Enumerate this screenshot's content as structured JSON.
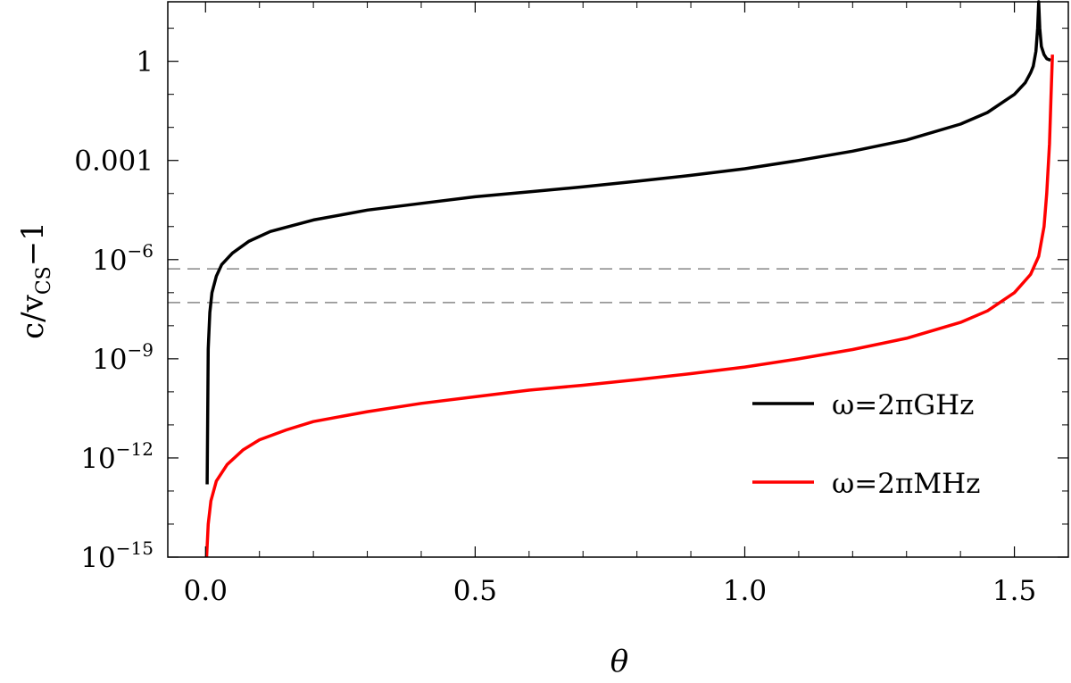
{
  "chart_data": {
    "type": "line",
    "xlabel": "θ",
    "ylabel": {
      "main": "c/v",
      "sub": "CS",
      "tail": "−1"
    },
    "xlim": [
      -0.07,
      1.6
    ],
    "ylim_log10": [
      -15,
      1.8
    ],
    "yscale": "log",
    "grid": false,
    "legend_position": "center-right",
    "x_ticks": [
      {
        "value": 0.0,
        "label": "0.0"
      },
      {
        "value": 0.5,
        "label": "0.5"
      },
      {
        "value": 1.0,
        "label": "1.0"
      },
      {
        "value": 1.5,
        "label": "1.5"
      }
    ],
    "x_minor_ticks": [
      0.1,
      0.2,
      0.3,
      0.4,
      0.6,
      0.7,
      0.8,
      0.9,
      1.1,
      1.2,
      1.3,
      1.4
    ],
    "y_ticks": [
      {
        "exp": 0,
        "base": "1",
        "sup": ""
      },
      {
        "exp": -3,
        "base": "0.001",
        "sup": ""
      },
      {
        "exp": -6,
        "base": "10",
        "sup": "−6"
      },
      {
        "exp": -9,
        "base": "10",
        "sup": "−9"
      },
      {
        "exp": -12,
        "base": "10",
        "sup": "−12"
      },
      {
        "exp": -15,
        "base": "10",
        "sup": "−15"
      }
    ],
    "reference_lines_log10": [
      -6.28,
      -7.3
    ],
    "series": [
      {
        "name": "ω=2πGHz",
        "color": "#000000",
        "points": [
          [
            0.003,
            -12.8
          ],
          [
            0.005,
            -8.7
          ],
          [
            0.008,
            -7.6
          ],
          [
            0.012,
            -7.0
          ],
          [
            0.02,
            -6.5
          ],
          [
            0.03,
            -6.15
          ],
          [
            0.05,
            -5.8
          ],
          [
            0.08,
            -5.45
          ],
          [
            0.12,
            -5.15
          ],
          [
            0.2,
            -4.8
          ],
          [
            0.3,
            -4.5
          ],
          [
            0.4,
            -4.3
          ],
          [
            0.5,
            -4.1
          ],
          [
            0.6,
            -3.95
          ],
          [
            0.7,
            -3.8
          ],
          [
            0.8,
            -3.63
          ],
          [
            0.9,
            -3.45
          ],
          [
            1.0,
            -3.25
          ],
          [
            1.1,
            -3.0
          ],
          [
            1.2,
            -2.72
          ],
          [
            1.3,
            -2.38
          ],
          [
            1.4,
            -1.9
          ],
          [
            1.45,
            -1.55
          ],
          [
            1.5,
            -1.0
          ],
          [
            1.52,
            -0.65
          ],
          [
            1.53,
            -0.35
          ],
          [
            1.535,
            -0.15
          ],
          [
            1.54,
            0.3
          ],
          [
            1.543,
            1.0
          ],
          [
            1.545,
            1.8
          ],
          [
            1.547,
            1.0
          ],
          [
            1.55,
            0.45
          ],
          [
            1.555,
            0.2
          ],
          [
            1.56,
            0.08
          ],
          [
            1.567,
            0.03
          ]
        ]
      },
      {
        "name": "ω=2πMHz",
        "color": "#ff0000",
        "points": [
          [
            0.002,
            -15.0
          ],
          [
            0.005,
            -14.0
          ],
          [
            0.01,
            -13.3
          ],
          [
            0.02,
            -12.7
          ],
          [
            0.04,
            -12.2
          ],
          [
            0.07,
            -11.75
          ],
          [
            0.1,
            -11.45
          ],
          [
            0.15,
            -11.15
          ],
          [
            0.2,
            -10.9
          ],
          [
            0.3,
            -10.6
          ],
          [
            0.4,
            -10.35
          ],
          [
            0.5,
            -10.15
          ],
          [
            0.6,
            -9.95
          ],
          [
            0.7,
            -9.8
          ],
          [
            0.8,
            -9.63
          ],
          [
            0.9,
            -9.45
          ],
          [
            1.0,
            -9.25
          ],
          [
            1.1,
            -9.0
          ],
          [
            1.2,
            -8.72
          ],
          [
            1.3,
            -8.38
          ],
          [
            1.4,
            -7.9
          ],
          [
            1.45,
            -7.55
          ],
          [
            1.5,
            -7.0
          ],
          [
            1.53,
            -6.45
          ],
          [
            1.545,
            -5.9
          ],
          [
            1.555,
            -5.0
          ],
          [
            1.56,
            -4.0
          ],
          [
            1.565,
            -2.5
          ],
          [
            1.568,
            -1.0
          ],
          [
            1.5705,
            0.2
          ]
        ]
      }
    ]
  }
}
